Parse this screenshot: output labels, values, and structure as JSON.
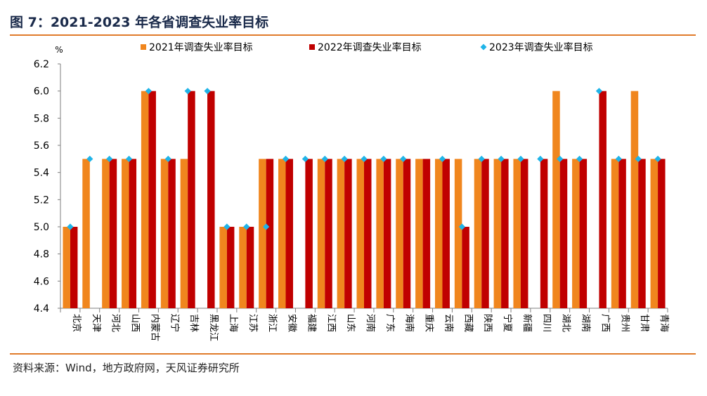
{
  "header": {
    "title": "图 7：2021-2023 年各省调查失业率目标"
  },
  "footer": {
    "source": "资料来源：Wind，地方政府网，天风证券研究所"
  },
  "chart_data": {
    "type": "bar",
    "unit_label": "%",
    "ylim": [
      4.4,
      6.2
    ],
    "yticks": [
      4.4,
      4.6,
      4.8,
      5.0,
      5.2,
      5.4,
      5.6,
      5.8,
      6.0,
      6.2
    ],
    "ytick_labels": [
      "4.4",
      "4.6",
      "4.8",
      "5.0",
      "5.2",
      "5.4",
      "5.6",
      "5.8",
      "6.0",
      "6.2"
    ],
    "grid": false,
    "legend_position": "top",
    "colors": {
      "s2021": "#f0861e",
      "s2022": "#c00000",
      "s2023": "#1fb4e8",
      "axis": "#7f7f7f"
    },
    "categories": [
      "北京",
      "天津",
      "河北",
      "山西",
      "内蒙古",
      "辽宁",
      "吉林",
      "黑龙江",
      "上海",
      "江苏",
      "浙江",
      "安徽",
      "福建",
      "江西",
      "山东",
      "河南",
      "广东",
      "海南",
      "重庆",
      "云南",
      "西藏",
      "陕西",
      "宁夏",
      "新疆",
      "四川",
      "湖北",
      "湖南",
      "广西",
      "贵州",
      "甘肃",
      "青海"
    ],
    "series": [
      {
        "name": "2021年调查失业率目标",
        "kind": "bar",
        "values": [
          5.0,
          5.5,
          5.5,
          5.5,
          6.0,
          5.5,
          5.5,
          null,
          5.0,
          5.0,
          5.5,
          5.5,
          null,
          5.5,
          5.5,
          5.5,
          5.5,
          5.5,
          5.5,
          5.5,
          5.5,
          5.5,
          5.5,
          5.5,
          null,
          6.0,
          5.5,
          null,
          5.5,
          6.0,
          5.5
        ]
      },
      {
        "name": "2022年调查失业率目标",
        "kind": "bar",
        "values": [
          5.0,
          null,
          5.5,
          5.5,
          6.0,
          5.5,
          6.0,
          6.0,
          5.0,
          5.0,
          5.5,
          5.5,
          5.5,
          5.5,
          5.5,
          5.5,
          5.5,
          5.5,
          5.5,
          5.5,
          5.0,
          5.5,
          5.5,
          5.5,
          5.5,
          5.5,
          5.5,
          6.0,
          5.5,
          5.5,
          5.5
        ]
      },
      {
        "name": "2023年调查失业率目标",
        "kind": "marker",
        "values": [
          5.0,
          5.5,
          5.5,
          5.5,
          6.0,
          5.5,
          6.0,
          6.0,
          5.0,
          5.0,
          5.0,
          5.5,
          5.5,
          5.5,
          5.5,
          5.5,
          5.5,
          5.5,
          null,
          5.5,
          5.0,
          5.5,
          5.5,
          5.5,
          5.5,
          5.5,
          5.5,
          6.0,
          5.5,
          5.5,
          5.5
        ]
      }
    ]
  }
}
